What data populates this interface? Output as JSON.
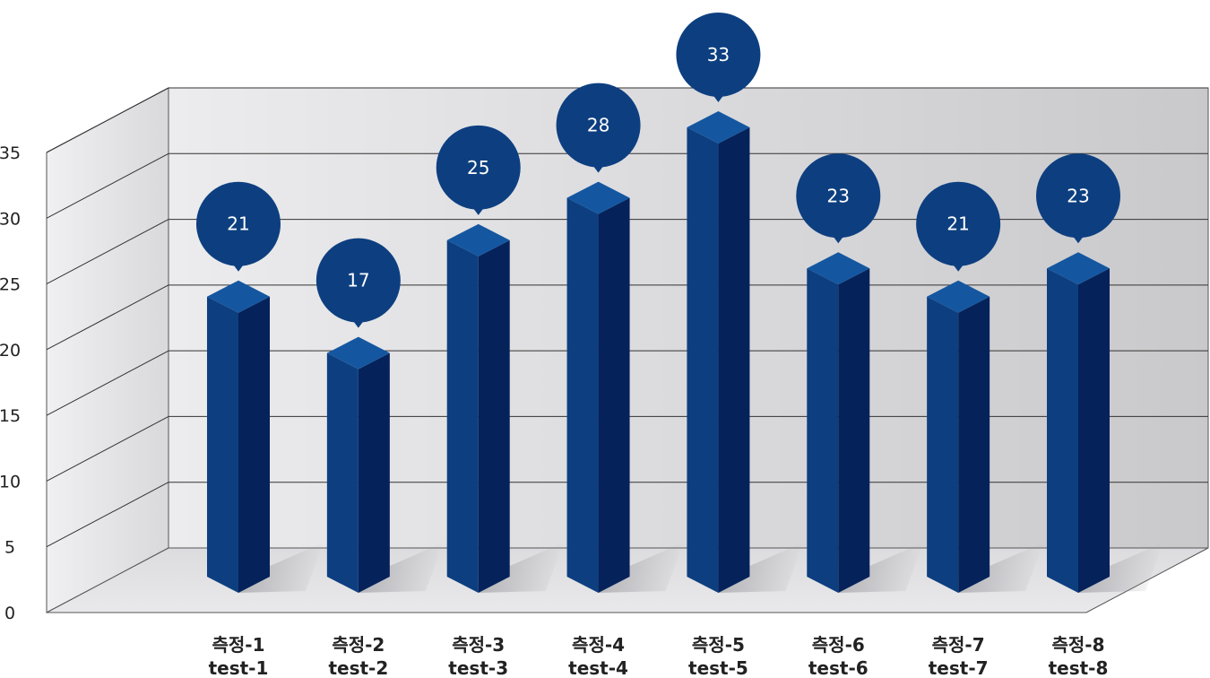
{
  "chart_data": {
    "type": "bar",
    "categories": [
      [
        "측정-1",
        "test-1"
      ],
      [
        "측정-2",
        "test-2"
      ],
      [
        "측정-3",
        "test-3"
      ],
      [
        "측정-4",
        "test-4"
      ],
      [
        "측정-5",
        "test-5"
      ],
      [
        "측정-6",
        "test-6"
      ],
      [
        "측정-7",
        "test-7"
      ],
      [
        "측정-8",
        "test-8"
      ]
    ],
    "values": [
      21,
      17,
      25,
      28,
      33,
      23,
      21,
      23
    ],
    "yticks": [
      "0",
      "5",
      "10",
      "15",
      "20",
      "25",
      "30",
      "35"
    ],
    "ylim": [
      0,
      35
    ],
    "grid": true,
    "title": "",
    "xlabel": "",
    "ylabel": "",
    "colors": {
      "bar_front": "#0d3f80",
      "bar_side": "#05225a",
      "bar_top": "#1457a0",
      "bubble": "#0d3f80",
      "grid": "#333333"
    }
  }
}
